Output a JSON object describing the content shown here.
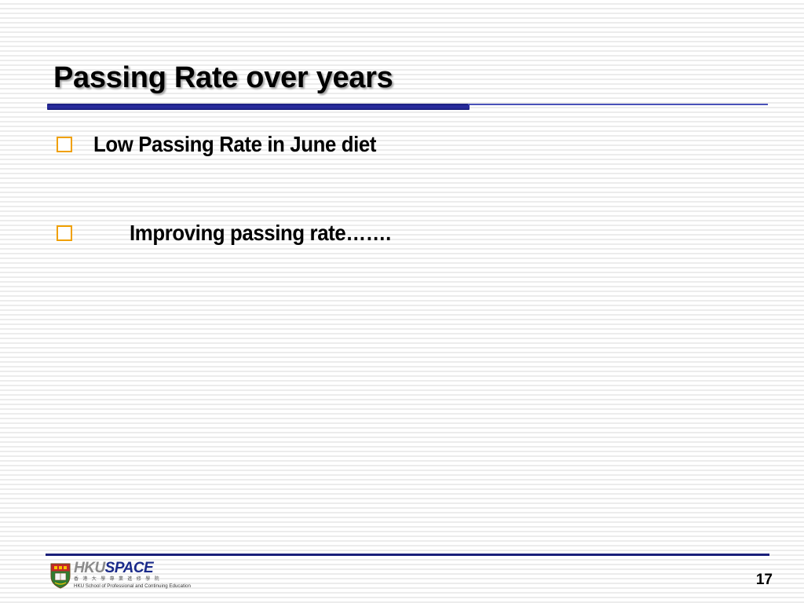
{
  "slide": {
    "title": "Passing Rate over years",
    "bullets": [
      {
        "icon": "hollow-square-bullet-icon",
        "text": "Low Passing Rate in June diet"
      },
      {
        "icon": "hollow-square-bullet-icon",
        "text": "Improving passing rate……."
      }
    ],
    "page_number": "17"
  },
  "logo": {
    "wordmark_hku": "HKU",
    "wordmark_space": "SPACE",
    "chinese_name": "香港大學專業進修學院",
    "english_name": "HKU School of Professional and Continuing Education",
    "crest_icon": "hku-crest-icon"
  },
  "colors": {
    "title_rule": "#1a1f7a",
    "bullet_box": "#f0a000",
    "footer_rule": "#1a1f7a",
    "logo_space": "#1a2a8a"
  }
}
